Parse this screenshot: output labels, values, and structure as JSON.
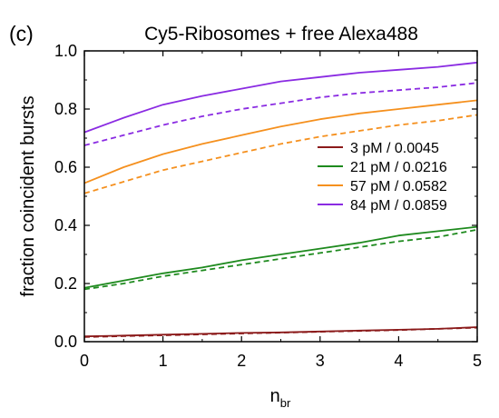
{
  "chart_data": {
    "type": "line",
    "panel_label": "(c)",
    "title": "Cy5-Ribosomes + free Alexa488",
    "xlabel_main": "n",
    "xlabel_sub": "br",
    "ylabel": "fraction coincident bursts",
    "xlim": [
      0,
      5
    ],
    "ylim": [
      0,
      1.0
    ],
    "xticks": [
      0,
      1,
      2,
      3,
      4,
      5
    ],
    "xtick_labels": [
      "0",
      "1",
      "2",
      "3",
      "4",
      "5"
    ],
    "yticks": [
      0,
      0.2,
      0.4,
      0.6,
      0.8,
      1.0
    ],
    "ytick_labels": [
      "0.0",
      "0.2",
      "0.4",
      "0.6",
      "0.8",
      "1.0"
    ],
    "grid": false,
    "legend_position": "center-right",
    "x": [
      0,
      0.5,
      1,
      1.5,
      2,
      2.5,
      3,
      3.5,
      4,
      4.5,
      5
    ],
    "series": [
      {
        "name": "3 pM / 0.0045",
        "color": "#8b1a1a",
        "solid": [
          0.018,
          0.021,
          0.024,
          0.027,
          0.03,
          0.032,
          0.035,
          0.038,
          0.041,
          0.044,
          0.05
        ],
        "dashed": [
          0.016,
          0.019,
          0.022,
          0.025,
          0.028,
          0.031,
          0.034,
          0.037,
          0.04,
          0.044,
          0.048
        ]
      },
      {
        "name": "21 pM / 0.0216",
        "color": "#1e8a1e",
        "solid": [
          0.185,
          0.21,
          0.235,
          0.255,
          0.28,
          0.3,
          0.32,
          0.34,
          0.365,
          0.38,
          0.395
        ],
        "dashed": [
          0.18,
          0.2,
          0.225,
          0.245,
          0.265,
          0.285,
          0.305,
          0.325,
          0.345,
          0.36,
          0.385
        ]
      },
      {
        "name": "57 pM / 0.0582",
        "color": "#f5901e",
        "solid": [
          0.545,
          0.6,
          0.645,
          0.68,
          0.71,
          0.74,
          0.765,
          0.785,
          0.8,
          0.815,
          0.83
        ],
        "dashed": [
          0.51,
          0.55,
          0.59,
          0.62,
          0.65,
          0.68,
          0.705,
          0.725,
          0.745,
          0.76,
          0.78
        ]
      },
      {
        "name": "84 pM / 0.0859",
        "color": "#8a2be2",
        "solid": [
          0.72,
          0.77,
          0.815,
          0.845,
          0.87,
          0.895,
          0.91,
          0.925,
          0.935,
          0.945,
          0.96
        ],
        "dashed": [
          0.675,
          0.71,
          0.745,
          0.775,
          0.8,
          0.82,
          0.84,
          0.855,
          0.865,
          0.875,
          0.89
        ]
      }
    ]
  }
}
